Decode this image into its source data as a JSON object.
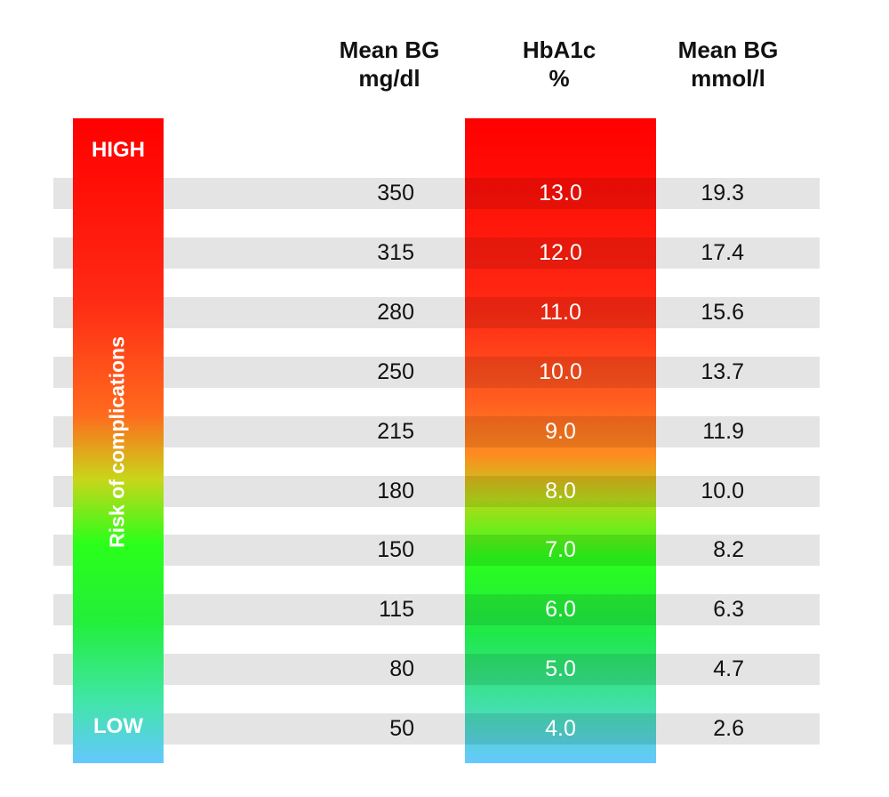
{
  "headers": {
    "mean_bg_mgdl": [
      "Mean BG",
      "mg/dl"
    ],
    "hba1c": [
      "HbA1c",
      "%"
    ],
    "mean_bg_mmol": [
      "Mean BG",
      "mmol/l"
    ]
  },
  "risk": {
    "high": "HIGH",
    "low": "LOW",
    "label": "Risk of complications"
  },
  "colors": {
    "high": "#ff0000",
    "mid": "#ff8a20",
    "normal": "#2cff1a",
    "low": "#66c8ff",
    "stripe": "#e4e4e4"
  },
  "chart_data": {
    "type": "table",
    "columns": [
      "Mean BG mg/dl",
      "HbA1c %",
      "Mean BG mmol/l"
    ],
    "rows": [
      {
        "mgdl": "350",
        "hba1c": "13.0",
        "mmol": "19.3"
      },
      {
        "mgdl": "315",
        "hba1c": "12.0",
        "mmol": "17.4"
      },
      {
        "mgdl": "280",
        "hba1c": "11.0",
        "mmol": "15.6"
      },
      {
        "mgdl": "250",
        "hba1c": "10.0",
        "mmol": "13.7"
      },
      {
        "mgdl": "215",
        "hba1c": "9.0",
        "mmol": "11.9"
      },
      {
        "mgdl": "180",
        "hba1c": "8.0",
        "mmol": "10.0"
      },
      {
        "mgdl": "150",
        "hba1c": "7.0",
        "mmol": "8.2"
      },
      {
        "mgdl": "115",
        "hba1c": "6.0",
        "mmol": "6.3"
      },
      {
        "mgdl": "80",
        "hba1c": "5.0",
        "mmol": "4.7"
      },
      {
        "mgdl": "50",
        "hba1c": "4.0",
        "mmol": "2.6"
      }
    ]
  }
}
